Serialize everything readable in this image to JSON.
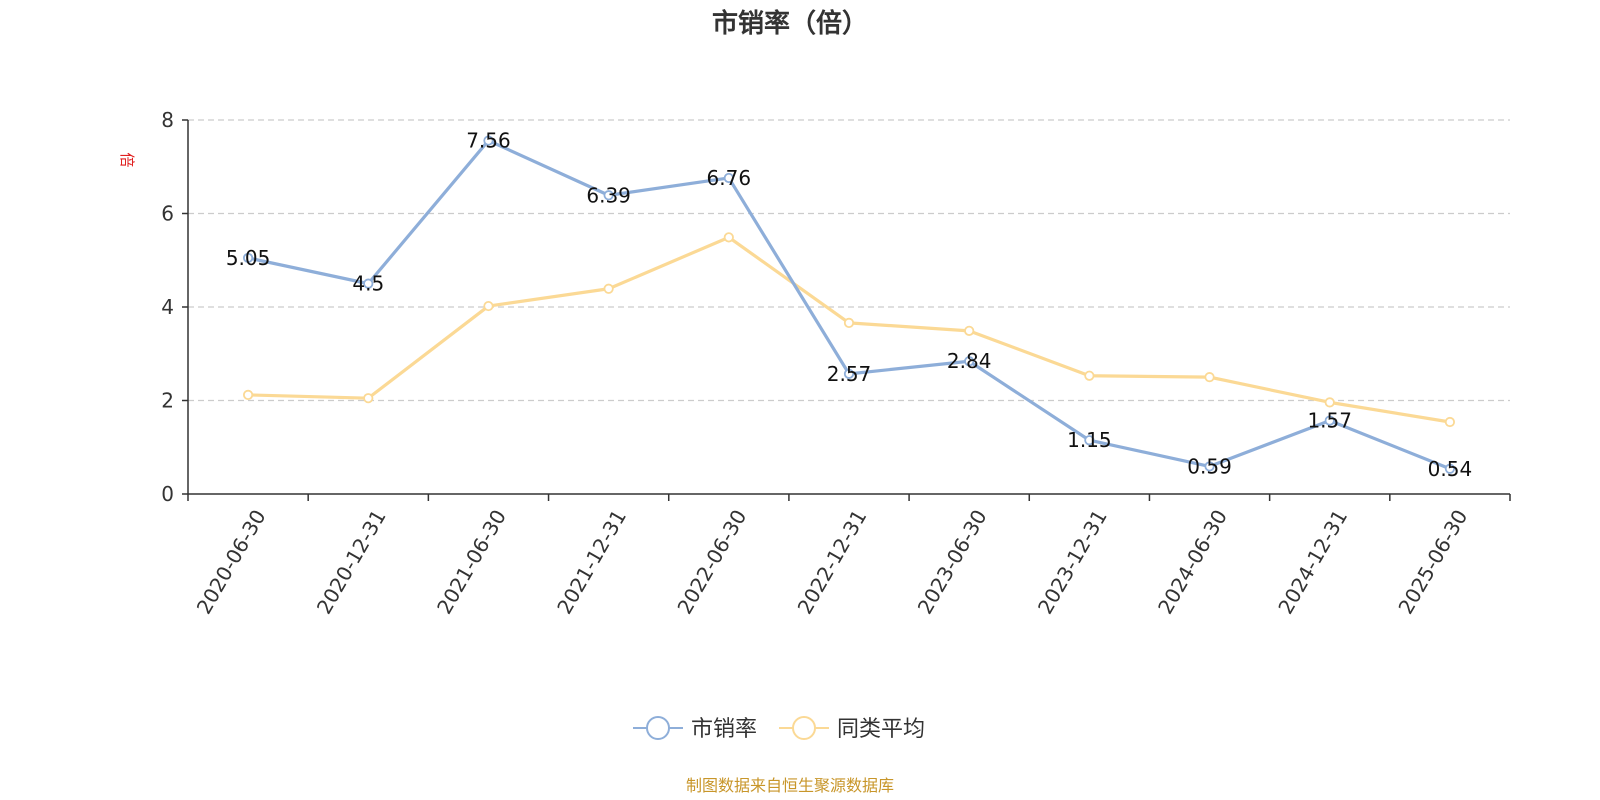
{
  "chart_data": {
    "type": "line",
    "title": "市销率（倍）",
    "ylabel": "倍",
    "xlabel": "",
    "ylim": [
      0,
      8
    ],
    "yticks": [
      0,
      2,
      4,
      6,
      8
    ],
    "grid": true,
    "legend_position": "bottom",
    "categories": [
      "2020-06-30",
      "2020-12-31",
      "2021-06-30",
      "2021-12-31",
      "2022-06-30",
      "2022-12-31",
      "2023-06-30",
      "2023-12-31",
      "2024-06-30",
      "2024-12-31",
      "2025-06-30"
    ],
    "series": [
      {
        "name": "市销率",
        "color": "#8eaed9",
        "show_labels": true,
        "values": [
          5.05,
          4.5,
          7.56,
          6.39,
          6.76,
          2.57,
          2.84,
          1.15,
          0.59,
          1.57,
          0.54
        ]
      },
      {
        "name": "同类平均",
        "color": "#fbd995",
        "show_labels": false,
        "values": [
          2.12,
          2.05,
          4.02,
          4.39,
          5.49,
          3.66,
          3.49,
          2.53,
          2.5,
          1.96,
          1.54
        ]
      }
    ]
  },
  "source_note": "制图数据来自恒生聚源数据库",
  "colors": {
    "axis": "#333333",
    "grid": "#cccccc",
    "ylabel": "#e02020",
    "source": "#c8962a"
  }
}
